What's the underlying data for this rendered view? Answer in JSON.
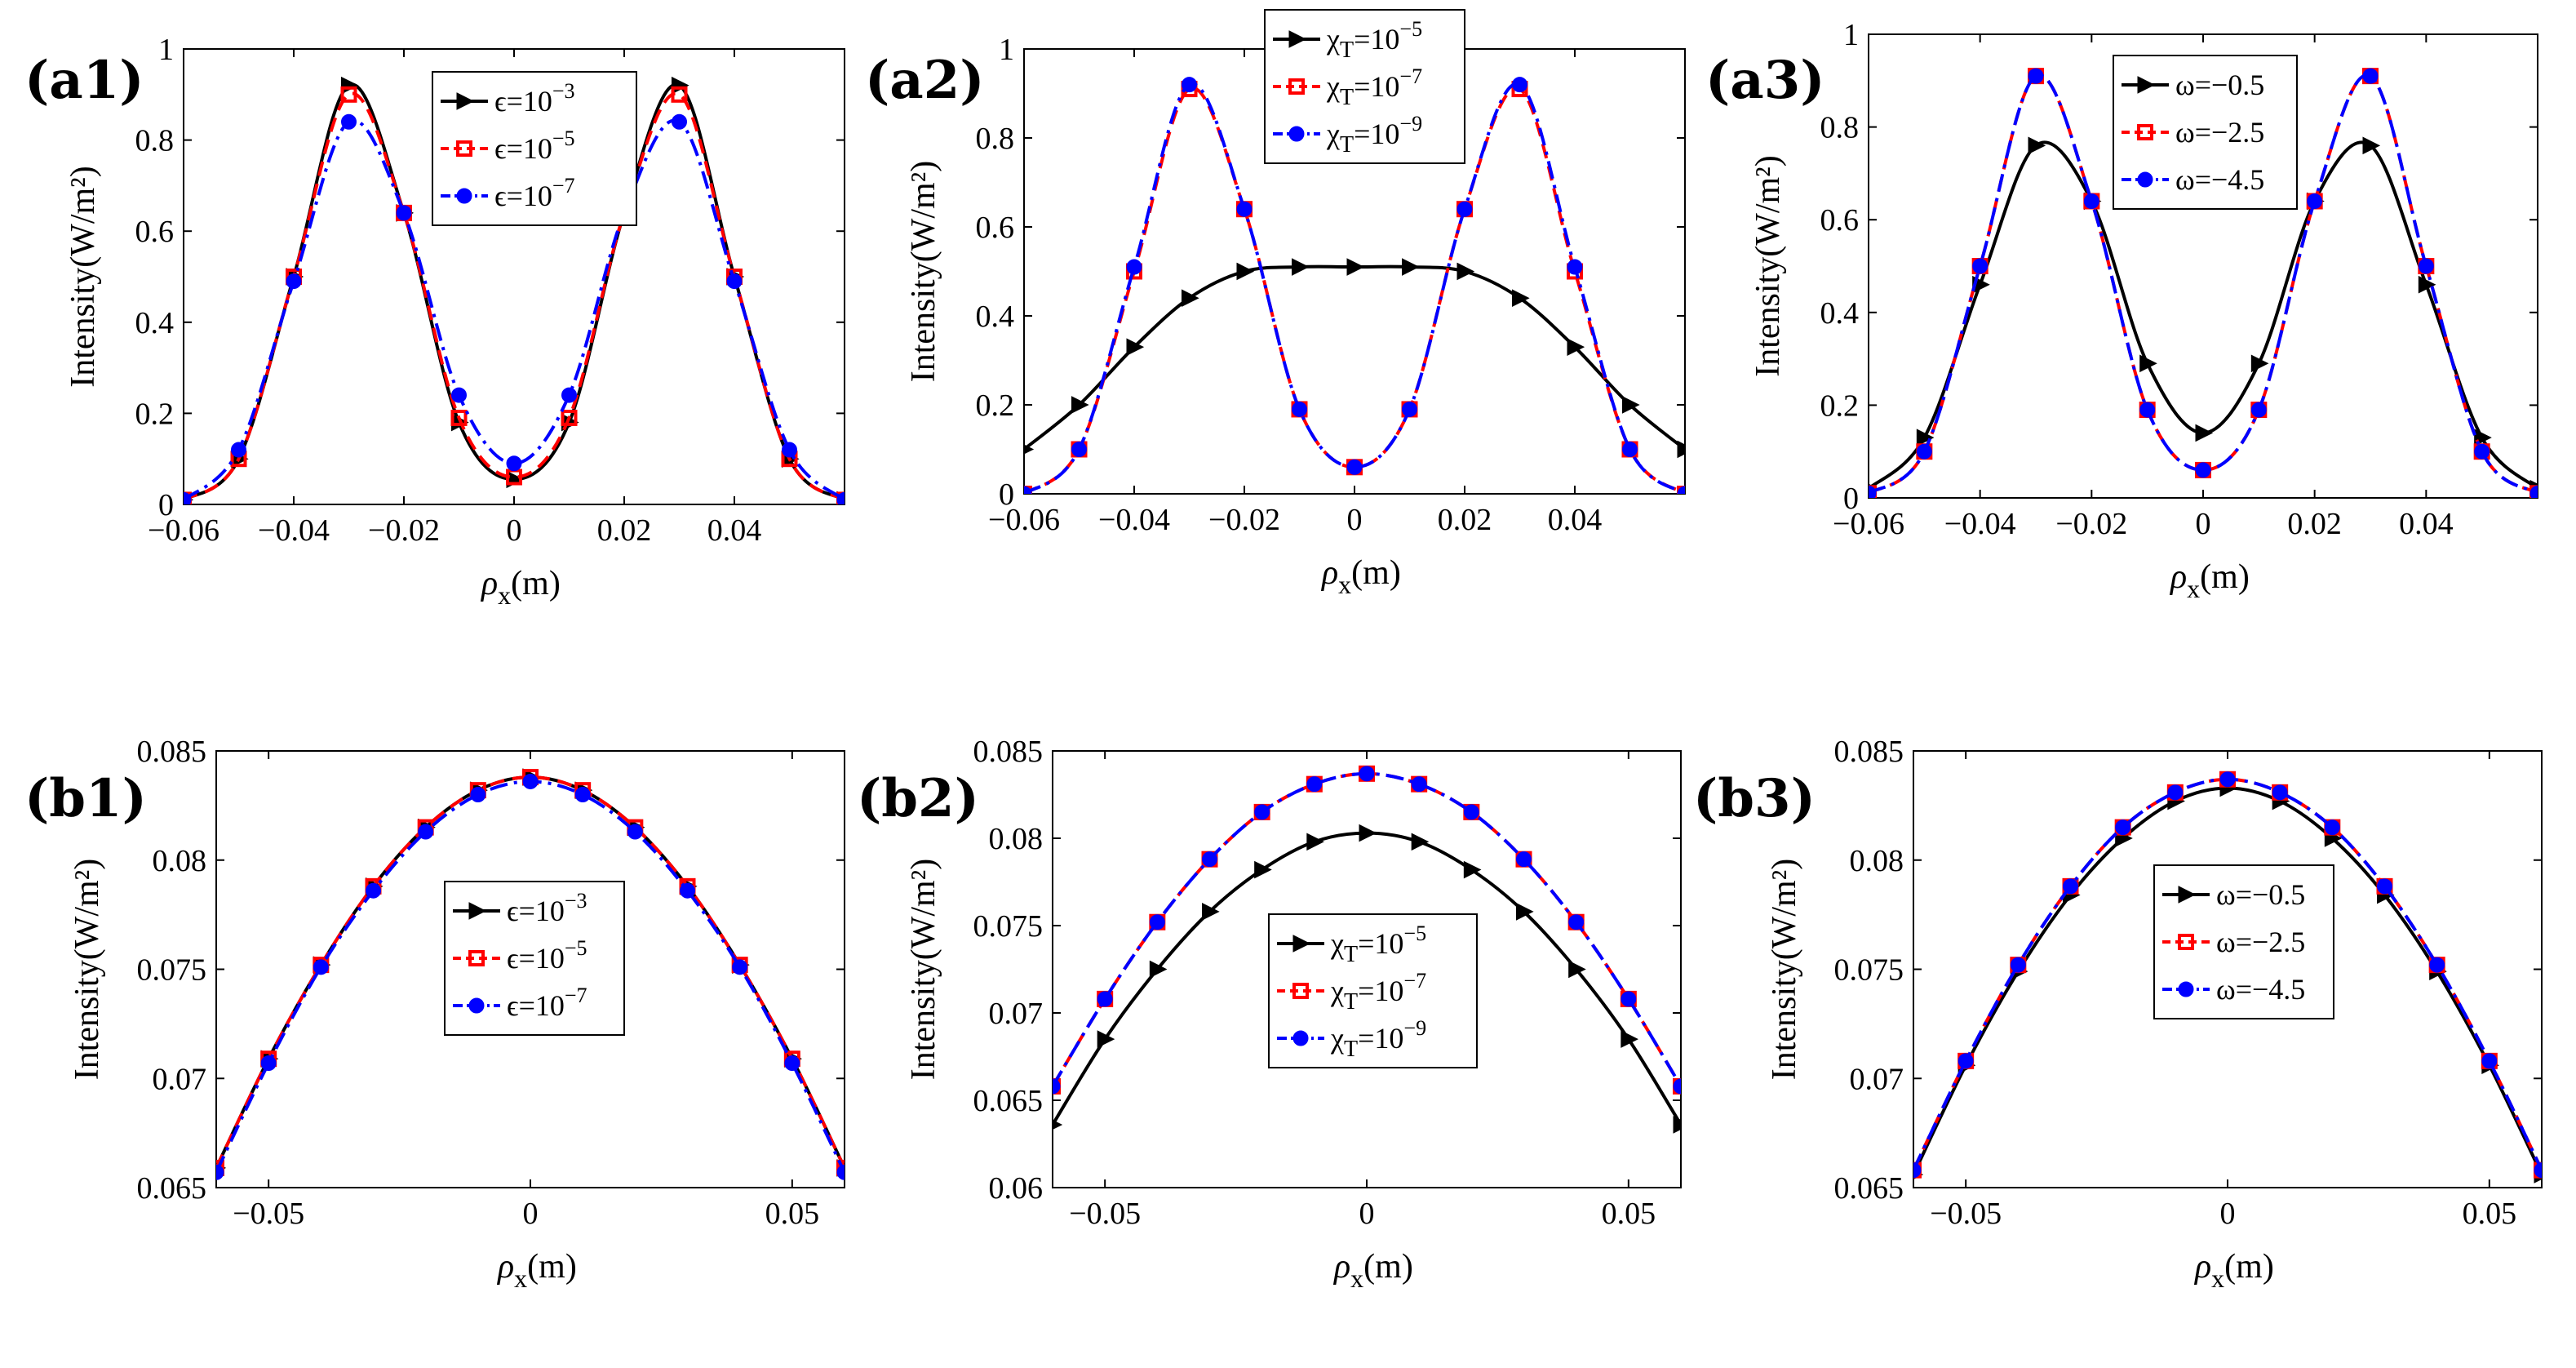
{
  "figure": {
    "background": "#ffffff"
  },
  "styles": {
    "series": [
      {
        "color": "#000000",
        "dash": "",
        "marker": "triangle-right"
      },
      {
        "color": "#ff0000",
        "dash": "18,10",
        "marker": "square"
      },
      {
        "color": "#0000ff",
        "dash": "22,8,4,8",
        "marker": "circle"
      }
    ]
  },
  "chart_data": [
    {
      "id": "a1",
      "panel_label": "(a1)",
      "type": "line",
      "ylabel": "Intensity(W/m²)",
      "xlabel_main": "ρ",
      "xlabel_sub": "x",
      "xlabel_unit": "(m)",
      "xlim": [
        -0.06,
        0.06
      ],
      "ylim": [
        0,
        1
      ],
      "xticks": [
        -0.06,
        -0.04,
        -0.02,
        0,
        0.02,
        0.04
      ],
      "xtick_labels": [
        "−0.06",
        "−0.04",
        "−0.02",
        "0",
        "0.02",
        "0.04"
      ],
      "yticks": [
        0,
        0.2,
        0.4,
        0.6,
        0.8,
        1
      ],
      "ytick_labels": [
        "0",
        "0.2",
        "0.4",
        "0.6",
        "0.8",
        "1"
      ],
      "legend_position": "top-center",
      "legend": [
        {
          "prefix": "ϵ=10",
          "exp": "−3"
        },
        {
          "prefix": "ϵ=10",
          "exp": "−5"
        },
        {
          "prefix": "ϵ=10",
          "exp": "−7"
        }
      ],
      "x": [
        -0.06,
        -0.05,
        -0.04,
        -0.03,
        -0.02,
        -0.01,
        0,
        0.01,
        0.02,
        0.03,
        0.04,
        0.05,
        0.06
      ],
      "series": [
        {
          "name": "ϵ=10^−3",
          "values": [
            0.01,
            0.1,
            0.5,
            0.92,
            0.64,
            0.18,
            0.055,
            0.18,
            0.64,
            0.92,
            0.5,
            0.1,
            0.01
          ]
        },
        {
          "name": "ϵ=10^−5",
          "values": [
            0.01,
            0.1,
            0.5,
            0.9,
            0.64,
            0.19,
            0.06,
            0.19,
            0.64,
            0.9,
            0.5,
            0.1,
            0.01
          ]
        },
        {
          "name": "ϵ=10^−7",
          "values": [
            0.01,
            0.12,
            0.49,
            0.84,
            0.64,
            0.24,
            0.09,
            0.24,
            0.64,
            0.84,
            0.49,
            0.12,
            0.01
          ]
        }
      ]
    },
    {
      "id": "a2",
      "panel_label": "(a2)",
      "type": "line",
      "ylabel": "Intensity(W/m²)",
      "xlabel_main": "ρ",
      "xlabel_sub": "x",
      "xlabel_unit": "(m)",
      "xlim": [
        -0.06,
        0.06
      ],
      "ylim": [
        0,
        1
      ],
      "xticks": [
        -0.06,
        -0.04,
        -0.02,
        0,
        0.02,
        0.04
      ],
      "xtick_labels": [
        "−0.06",
        "−0.04",
        "−0.02",
        "0",
        "0.02",
        "0.04"
      ],
      "yticks": [
        0,
        0.2,
        0.4,
        0.6,
        0.8,
        1
      ],
      "ytick_labels": [
        "0",
        "0.2",
        "0.4",
        "0.6",
        "0.8",
        "1"
      ],
      "legend_position": "top-center",
      "legend": [
        {
          "prefix": "χ",
          "sub": "T",
          "mid": "=10",
          "exp": "−5"
        },
        {
          "prefix": "χ",
          "sub": "T",
          "mid": "=10",
          "exp": "−7"
        },
        {
          "prefix": "χ",
          "sub": "T",
          "mid": "=10",
          "exp": "−9"
        }
      ],
      "x": [
        -0.06,
        -0.05,
        -0.04,
        -0.03,
        -0.02,
        -0.01,
        0,
        0.01,
        0.02,
        0.03,
        0.04,
        0.05,
        0.06
      ],
      "series": [
        {
          "name": "χ_T=10^−5",
          "values": [
            0.1,
            0.2,
            0.33,
            0.44,
            0.5,
            0.51,
            0.51,
            0.51,
            0.5,
            0.44,
            0.33,
            0.2,
            0.1
          ]
        },
        {
          "name": "χ_T=10^−7",
          "values": [
            0.0,
            0.1,
            0.5,
            0.91,
            0.64,
            0.19,
            0.06,
            0.19,
            0.64,
            0.91,
            0.5,
            0.1,
            0.0
          ]
        },
        {
          "name": "χ_T=10^−9",
          "values": [
            0.0,
            0.1,
            0.51,
            0.92,
            0.64,
            0.19,
            0.06,
            0.19,
            0.64,
            0.92,
            0.51,
            0.1,
            0.0
          ]
        }
      ]
    },
    {
      "id": "a3",
      "panel_label": "(a3)",
      "type": "line",
      "ylabel": "Intensity(W/m²)",
      "xlabel_main": "ρ",
      "xlabel_sub": "x",
      "xlabel_unit": "(m)",
      "xlim": [
        -0.06,
        0.06
      ],
      "ylim": [
        0,
        1
      ],
      "xticks": [
        -0.06,
        -0.04,
        -0.02,
        0,
        0.02,
        0.04
      ],
      "xtick_labels": [
        "−0.06",
        "−0.04",
        "−0.02",
        "0",
        "0.02",
        "0.04"
      ],
      "yticks": [
        0,
        0.2,
        0.4,
        0.6,
        0.8,
        1
      ],
      "ytick_labels": [
        "0",
        "0.2",
        "0.4",
        "0.6",
        "0.8",
        "1"
      ],
      "legend_position": "top-center",
      "legend": [
        {
          "prefix": "ω=−0.5"
        },
        {
          "prefix": "ω=−2.5"
        },
        {
          "prefix": "ω=−4.5"
        }
      ],
      "x": [
        -0.06,
        -0.05,
        -0.04,
        -0.03,
        -0.02,
        -0.01,
        0,
        0.01,
        0.02,
        0.03,
        0.04,
        0.05,
        0.06
      ],
      "series": [
        {
          "name": "ω=−0.5",
          "values": [
            0.02,
            0.13,
            0.46,
            0.76,
            0.64,
            0.29,
            0.14,
            0.29,
            0.64,
            0.76,
            0.46,
            0.13,
            0.02
          ]
        },
        {
          "name": "ω=−2.5",
          "values": [
            0.01,
            0.1,
            0.5,
            0.91,
            0.64,
            0.19,
            0.06,
            0.19,
            0.64,
            0.91,
            0.5,
            0.1,
            0.01
          ]
        },
        {
          "name": "ω=−4.5",
          "values": [
            0.01,
            0.1,
            0.5,
            0.91,
            0.64,
            0.19,
            0.06,
            0.19,
            0.64,
            0.91,
            0.5,
            0.1,
            0.01
          ]
        }
      ]
    },
    {
      "id": "b1",
      "panel_label": "(b1)",
      "type": "line",
      "ylabel": "Intensity(W/m²)",
      "xlabel_main": "ρ",
      "xlabel_sub": "x",
      "xlabel_unit": "(m)",
      "xlim": [
        -0.06,
        0.06
      ],
      "ylim": [
        0.065,
        0.085
      ],
      "xticks": [
        -0.05,
        0,
        0.05
      ],
      "xtick_labels": [
        "−0.05",
        "0",
        "0.05"
      ],
      "yticks": [
        0.065,
        0.07,
        0.075,
        0.08,
        0.085
      ],
      "ytick_labels": [
        "0.065",
        "0.07",
        "0.075",
        "0.08",
        "0.085"
      ],
      "legend_position": "center",
      "legend": [
        {
          "prefix": "ϵ=10",
          "exp": "−3"
        },
        {
          "prefix": "ϵ=10",
          "exp": "−5"
        },
        {
          "prefix": "ϵ=10",
          "exp": "−7"
        }
      ],
      "x": [
        -0.06,
        -0.05,
        -0.04,
        -0.03,
        -0.02,
        -0.01,
        0,
        0.01,
        0.02,
        0.03,
        0.04,
        0.05,
        0.06
      ],
      "series": [
        {
          "name": "ϵ=10^−3",
          "values": [
            0.0659,
            0.0709,
            0.0752,
            0.0788,
            0.0815,
            0.0832,
            0.0838,
            0.0832,
            0.0815,
            0.0788,
            0.0752,
            0.0709,
            0.0659
          ]
        },
        {
          "name": "ϵ=10^−5",
          "values": [
            0.0659,
            0.0709,
            0.0752,
            0.0788,
            0.0815,
            0.0832,
            0.0838,
            0.0832,
            0.0815,
            0.0788,
            0.0752,
            0.0709,
            0.0659
          ]
        },
        {
          "name": "ϵ=10^−7",
          "values": [
            0.0657,
            0.0707,
            0.0751,
            0.0786,
            0.0813,
            0.083,
            0.0836,
            0.083,
            0.0813,
            0.0786,
            0.0751,
            0.0707,
            0.0657
          ]
        }
      ]
    },
    {
      "id": "b2",
      "panel_label": "(b2)",
      "type": "line",
      "ylabel": "Intensity(W/m²)",
      "xlabel_main": "ρ",
      "xlabel_sub": "x",
      "xlabel_unit": "(m)",
      "xlim": [
        -0.06,
        0.06
      ],
      "ylim": [
        0.06,
        0.085
      ],
      "xticks": [
        -0.05,
        0,
        0.05
      ],
      "xtick_labels": [
        "−0.05",
        "0",
        "0.05"
      ],
      "yticks": [
        0.06,
        0.065,
        0.07,
        0.075,
        0.08,
        0.085
      ],
      "ytick_labels": [
        "0.06",
        "0.065",
        "0.07",
        "0.075",
        "0.08",
        "0.085"
      ],
      "legend_position": "bottom-center",
      "legend": [
        {
          "prefix": "χ",
          "sub": "T",
          "mid": "=10",
          "exp": "−5"
        },
        {
          "prefix": "χ",
          "sub": "T",
          "mid": "=10",
          "exp": "−7"
        },
        {
          "prefix": "χ",
          "sub": "T",
          "mid": "=10",
          "exp": "−9"
        }
      ],
      "x": [
        -0.06,
        -0.05,
        -0.04,
        -0.03,
        -0.02,
        -0.01,
        0,
        0.01,
        0.02,
        0.03,
        0.04,
        0.05,
        0.06
      ],
      "series": [
        {
          "name": "χ_T=10^−5",
          "values": [
            0.0636,
            0.0685,
            0.0725,
            0.0758,
            0.0782,
            0.0798,
            0.0803,
            0.0798,
            0.0782,
            0.0758,
            0.0725,
            0.0685,
            0.0636
          ]
        },
        {
          "name": "χ_T=10^−7",
          "values": [
            0.0658,
            0.0708,
            0.0752,
            0.0788,
            0.0815,
            0.0831,
            0.0837,
            0.0831,
            0.0815,
            0.0788,
            0.0752,
            0.0708,
            0.0658
          ]
        },
        {
          "name": "χ_T=10^−9",
          "values": [
            0.0658,
            0.0708,
            0.0752,
            0.0788,
            0.0815,
            0.0831,
            0.0837,
            0.0831,
            0.0815,
            0.0788,
            0.0752,
            0.0708,
            0.0658
          ]
        }
      ]
    },
    {
      "id": "b3",
      "panel_label": "(b3)",
      "type": "line",
      "ylabel": "Intensity(W/m²)",
      "xlabel_main": "ρ",
      "xlabel_sub": "x",
      "xlabel_unit": "(m)",
      "xlim": [
        -0.06,
        0.06
      ],
      "ylim": [
        0.065,
        0.085
      ],
      "xticks": [
        -0.05,
        0,
        0.05
      ],
      "xtick_labels": [
        "−0.05",
        "0",
        "0.05"
      ],
      "yticks": [
        0.065,
        0.07,
        0.075,
        0.08,
        0.085
      ],
      "ytick_labels": [
        "0.065",
        "0.07",
        "0.075",
        "0.08",
        "0.085"
      ],
      "legend_position": "center",
      "legend": [
        {
          "prefix": "ω=−0.5"
        },
        {
          "prefix": "ω=−2.5"
        },
        {
          "prefix": "ω=−4.5"
        }
      ],
      "x": [
        -0.06,
        -0.05,
        -0.04,
        -0.03,
        -0.02,
        -0.01,
        0,
        0.01,
        0.02,
        0.03,
        0.04,
        0.05,
        0.06
      ],
      "series": [
        {
          "name": "ω=−0.5",
          "values": [
            0.0656,
            0.0706,
            0.0749,
            0.0784,
            0.081,
            0.0827,
            0.0833,
            0.0827,
            0.081,
            0.0784,
            0.0749,
            0.0706,
            0.0656
          ]
        },
        {
          "name": "ω=−2.5",
          "values": [
            0.0658,
            0.0708,
            0.0752,
            0.0788,
            0.0815,
            0.0831,
            0.0837,
            0.0831,
            0.0815,
            0.0788,
            0.0752,
            0.0708,
            0.0658
          ]
        },
        {
          "name": "ω=−4.5",
          "values": [
            0.0658,
            0.0708,
            0.0752,
            0.0788,
            0.0815,
            0.0831,
            0.0837,
            0.0831,
            0.0815,
            0.0788,
            0.0752,
            0.0708,
            0.0658
          ]
        }
      ]
    }
  ]
}
